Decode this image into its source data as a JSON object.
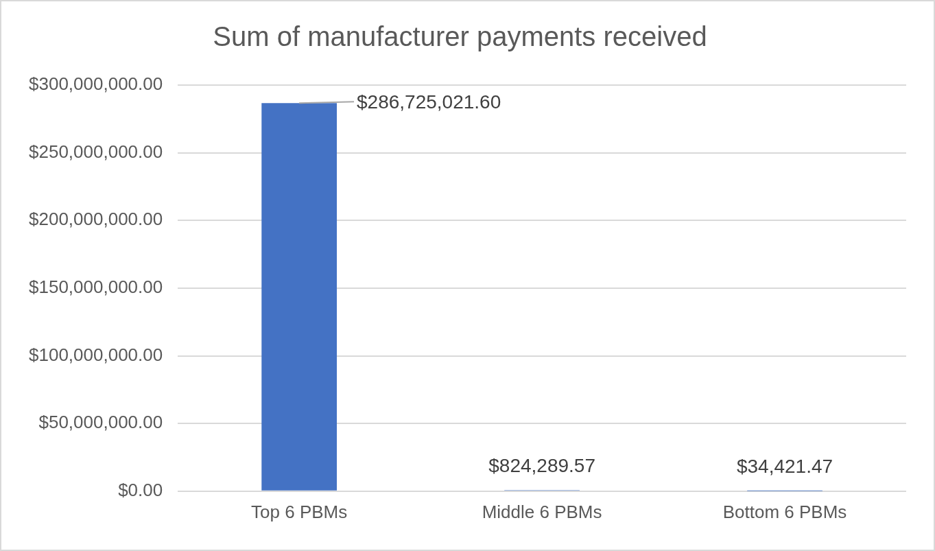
{
  "chart_data": {
    "type": "bar",
    "title": "Sum of manufacturer payments received",
    "categories": [
      "Top 6 PBMs",
      "Middle 6 PBMs",
      "Bottom 6 PBMs"
    ],
    "values": [
      286725021.6,
      824289.57,
      34421.47
    ],
    "value_labels": [
      "$286,725,021.60",
      "$824,289.57",
      "$34,421.47"
    ],
    "data_labels": true,
    "color": "#4472c4",
    "ylim": [
      0,
      300000000
    ],
    "yticks": [
      {
        "value": 0,
        "label": "$0.00"
      },
      {
        "value": 50000000,
        "label": "$50,000,000.00"
      },
      {
        "value": 100000000,
        "label": "$100,000,000.00"
      },
      {
        "value": 150000000,
        "label": "$150,000,000.00"
      },
      {
        "value": 200000000,
        "label": "$200,000,000.00"
      },
      {
        "value": 250000000,
        "label": "$250,000,000.00"
      },
      {
        "value": 300000000,
        "label": "$300,000,000.00"
      }
    ],
    "grid": true
  }
}
